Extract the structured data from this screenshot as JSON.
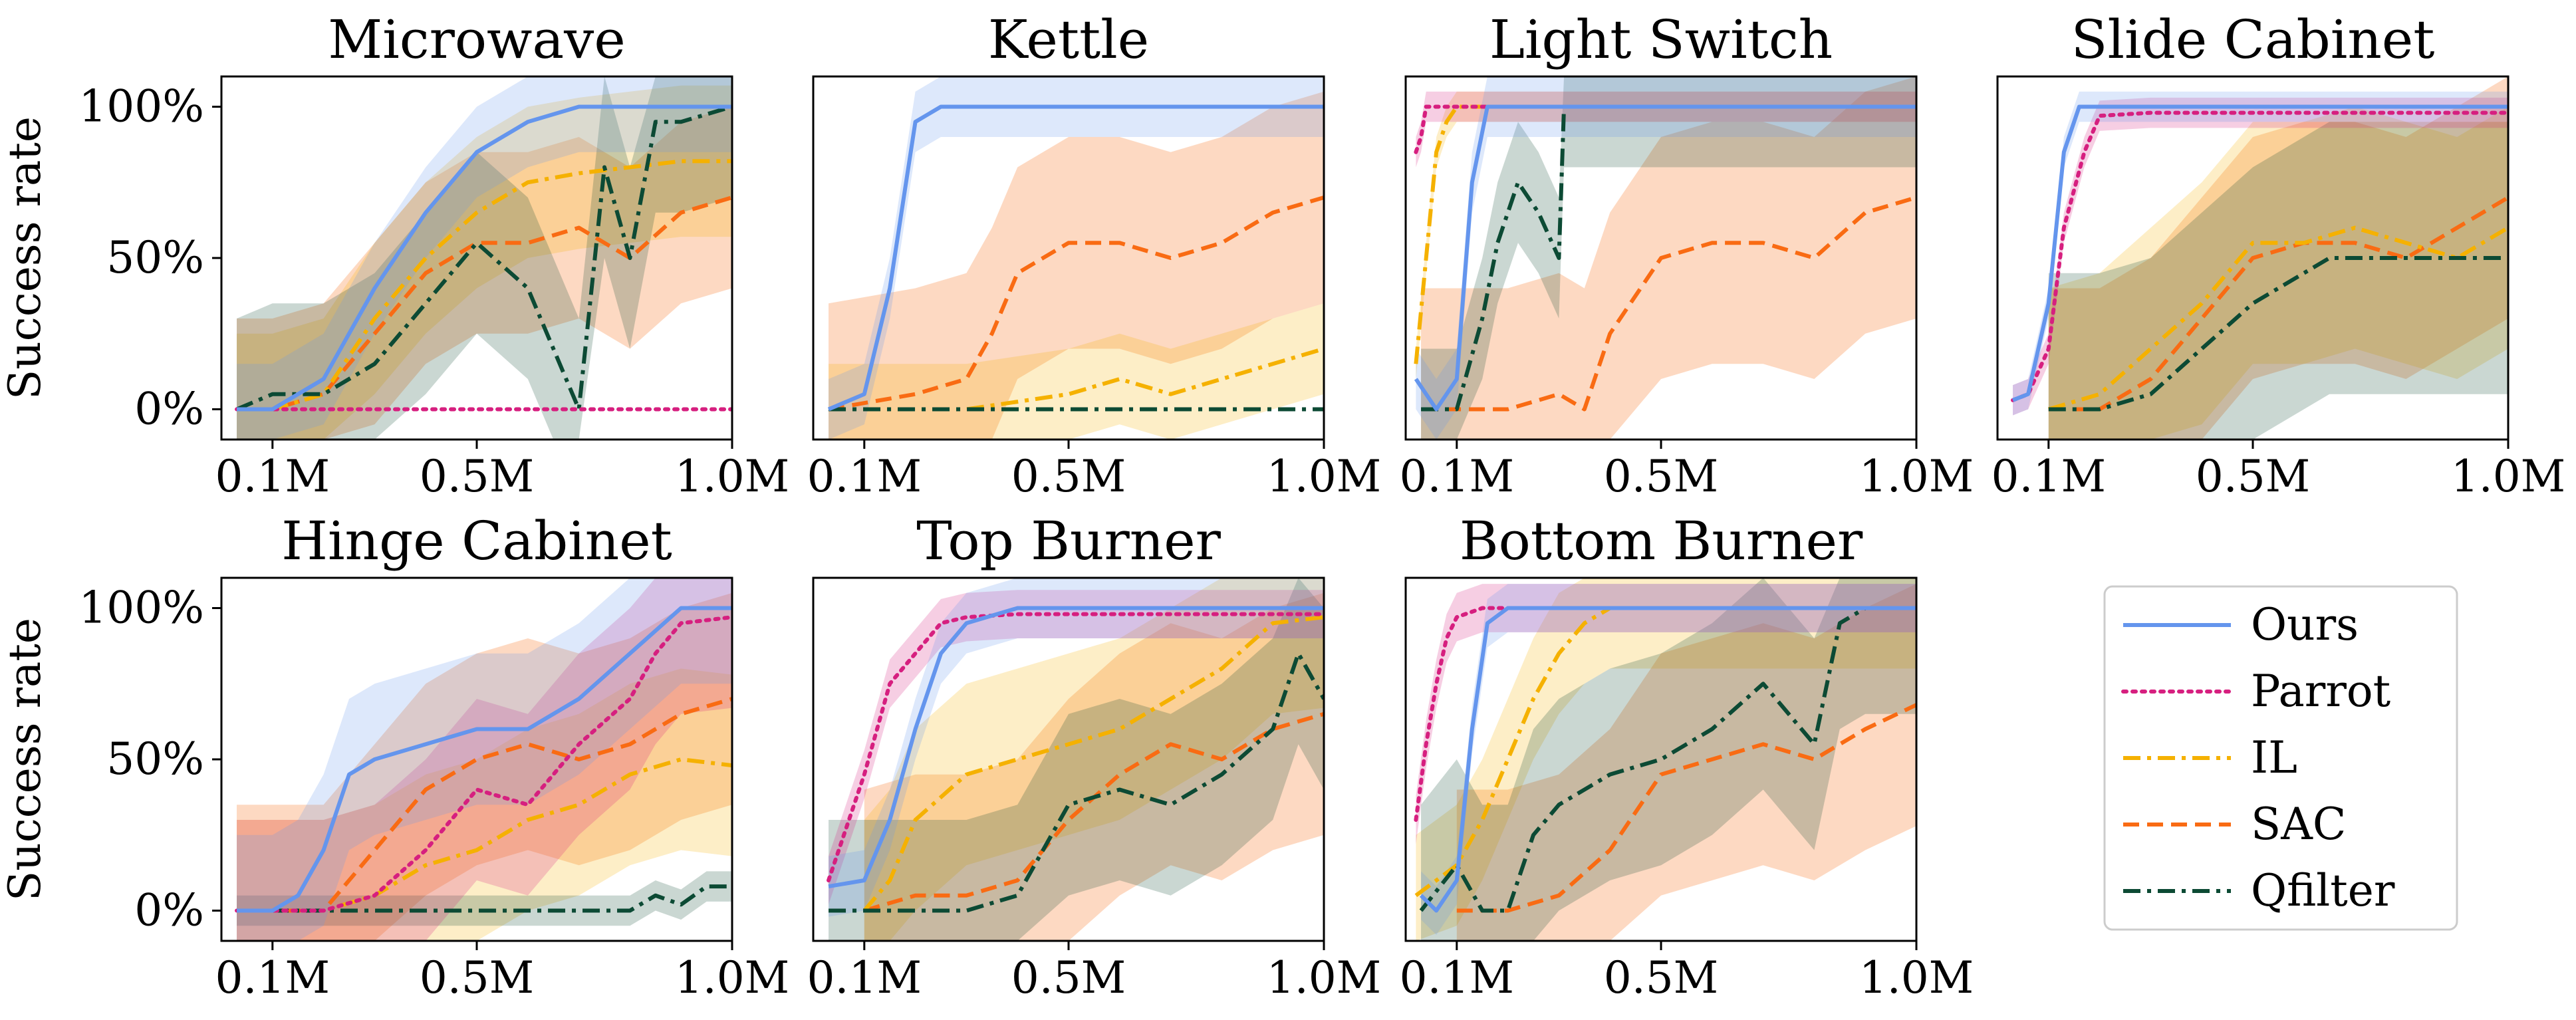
{
  "chart_data": [
    {
      "type": "line",
      "title": "Microwave",
      "ylabel": "Success rate",
      "xlabel": "",
      "xlim": [
        0,
        1.0
      ],
      "ylim": [
        -0.1,
        1.1
      ],
      "xticks": [
        "0.1M",
        "0.5M",
        "1.0M"
      ],
      "xtick_values": [
        0.1,
        0.5,
        1.0
      ],
      "yticks": [
        "0%",
        "50%",
        "100%"
      ],
      "ytick_values": [
        0,
        0.5,
        1.0
      ],
      "series": [
        {
          "name": "Ours",
          "x": [
            0.03,
            0.1,
            0.2,
            0.3,
            0.4,
            0.5,
            0.6,
            0.7,
            0.8,
            0.9,
            1.0
          ],
          "y": [
            0.0,
            0.0,
            0.1,
            0.4,
            0.65,
            0.85,
            0.95,
            1.0,
            1.0,
            1.0,
            1.0
          ],
          "band": 0.15
        },
        {
          "name": "Parrot",
          "x": [
            0.03,
            0.2,
            0.4,
            0.6,
            0.8,
            1.0
          ],
          "y": [
            0.0,
            0.0,
            0.0,
            0.0,
            0.0,
            0.0
          ],
          "band": 0.0
        },
        {
          "name": "IL",
          "x": [
            0.03,
            0.1,
            0.2,
            0.3,
            0.4,
            0.5,
            0.6,
            0.7,
            0.8,
            0.9,
            1.0
          ],
          "y": [
            0.0,
            0.0,
            0.05,
            0.3,
            0.5,
            0.65,
            0.75,
            0.78,
            0.8,
            0.82,
            0.82
          ],
          "band": 0.25
        },
        {
          "name": "SAC",
          "x": [
            0.03,
            0.1,
            0.2,
            0.3,
            0.4,
            0.5,
            0.6,
            0.7,
            0.8,
            0.9,
            1.0
          ],
          "y": [
            0.0,
            0.0,
            0.05,
            0.25,
            0.45,
            0.55,
            0.55,
            0.6,
            0.5,
            0.65,
            0.7
          ],
          "band": 0.3
        },
        {
          "name": "Qfilter",
          "x": [
            0.03,
            0.1,
            0.2,
            0.3,
            0.4,
            0.5,
            0.6,
            0.65,
            0.7,
            0.75,
            0.8,
            0.85,
            0.9,
            1.0
          ],
          "y": [
            0.0,
            0.05,
            0.05,
            0.15,
            0.35,
            0.55,
            0.4,
            0.2,
            0.0,
            0.8,
            0.5,
            0.95,
            0.95,
            1.0
          ],
          "band": 0.3
        }
      ]
    },
    {
      "type": "line",
      "title": "Kettle",
      "ylabel": "",
      "xlabel": "",
      "xlim": [
        0,
        1.0
      ],
      "ylim": [
        -0.1,
        1.1
      ],
      "xticks": [
        "0.1M",
        "0.5M",
        "1.0M"
      ],
      "xtick_values": [
        0.1,
        0.5,
        1.0
      ],
      "yticks": [],
      "ytick_values": [],
      "series": [
        {
          "name": "Ours",
          "x": [
            0.03,
            0.1,
            0.15,
            0.2,
            0.25,
            0.3,
            0.5,
            0.7,
            1.0
          ],
          "y": [
            0.0,
            0.05,
            0.4,
            0.95,
            1.0,
            1.0,
            1.0,
            1.0,
            1.0
          ],
          "band": 0.1
        },
        {
          "name": "IL",
          "x": [
            0.03,
            0.3,
            0.5,
            0.6,
            0.7,
            0.8,
            0.9,
            1.0
          ],
          "y": [
            0.0,
            0.0,
            0.05,
            0.1,
            0.05,
            0.1,
            0.15,
            0.2
          ],
          "band": 0.15
        },
        {
          "name": "SAC",
          "x": [
            0.03,
            0.2,
            0.3,
            0.35,
            0.4,
            0.5,
            0.6,
            0.7,
            0.8,
            0.9,
            1.0
          ],
          "y": [
            0.0,
            0.05,
            0.1,
            0.25,
            0.45,
            0.55,
            0.55,
            0.5,
            0.55,
            0.65,
            0.7
          ],
          "band": 0.35
        },
        {
          "name": "Qfilter",
          "x": [
            0.03,
            0.3,
            0.6,
            1.0
          ],
          "y": [
            0.0,
            0.0,
            0.0,
            0.0
          ],
          "band": 0.0
        }
      ]
    },
    {
      "type": "line",
      "title": "Light Switch",
      "ylabel": "",
      "xlabel": "",
      "xlim": [
        0,
        1.0
      ],
      "ylim": [
        -0.1,
        1.1
      ],
      "xticks": [
        "0.1M",
        "0.5M",
        "1.0M"
      ],
      "xtick_values": [
        0.1,
        0.5,
        1.0
      ],
      "yticks": [],
      "ytick_values": [],
      "series": [
        {
          "name": "Ours",
          "x": [
            0.02,
            0.06,
            0.1,
            0.13,
            0.16,
            0.2,
            0.3,
            0.5,
            1.0
          ],
          "y": [
            0.1,
            0.0,
            0.1,
            0.75,
            1.0,
            1.0,
            1.0,
            1.0,
            1.0
          ],
          "band": 0.1
        },
        {
          "name": "Parrot",
          "x": [
            0.02,
            0.03,
            0.04,
            0.06,
            0.1,
            0.2,
            0.5,
            1.0
          ],
          "y": [
            0.85,
            0.9,
            1.0,
            1.0,
            1.0,
            1.0,
            1.0,
            1.0
          ],
          "band": 0.05
        },
        {
          "name": "IL",
          "x": [
            0.02,
            0.04,
            0.06,
            0.08,
            0.1,
            0.2,
            0.5,
            1.0
          ],
          "y": [
            0.15,
            0.5,
            0.85,
            0.95,
            1.0,
            1.0,
            1.0,
            1.0
          ],
          "band": 0.05
        },
        {
          "name": "SAC",
          "x": [
            0.03,
            0.2,
            0.3,
            0.35,
            0.4,
            0.5,
            0.6,
            0.7,
            0.8,
            0.9,
            1.0
          ],
          "y": [
            0.0,
            0.0,
            0.05,
            0.0,
            0.25,
            0.5,
            0.55,
            0.55,
            0.5,
            0.65,
            0.7
          ],
          "band": 0.4
        },
        {
          "name": "Qfilter",
          "x": [
            0.03,
            0.1,
            0.15,
            0.18,
            0.22,
            0.26,
            0.3,
            0.31,
            0.4,
            0.6,
            1.0
          ],
          "y": [
            0.0,
            0.0,
            0.3,
            0.55,
            0.75,
            0.65,
            0.5,
            1.0,
            1.0,
            1.0,
            1.0
          ],
          "band": 0.2
        }
      ]
    },
    {
      "type": "line",
      "title": "Slide Cabinet",
      "ylabel": "",
      "xlabel": "",
      "xlim": [
        0,
        1.0
      ],
      "ylim": [
        -0.1,
        1.1
      ],
      "xticks": [
        "0.1M",
        "0.5M",
        "1.0M"
      ],
      "xtick_values": [
        0.1,
        0.5,
        1.0
      ],
      "yticks": [],
      "ytick_values": [],
      "series": [
        {
          "name": "Ours",
          "x": [
            0.03,
            0.06,
            0.1,
            0.13,
            0.16,
            0.2,
            0.3,
            0.5,
            1.0
          ],
          "y": [
            0.03,
            0.05,
            0.35,
            0.85,
            1.0,
            1.0,
            1.0,
            1.0,
            1.0
          ],
          "band": 0.05
        },
        {
          "name": "Parrot",
          "x": [
            0.03,
            0.06,
            0.1,
            0.13,
            0.17,
            0.2,
            0.3,
            0.5,
            1.0
          ],
          "y": [
            0.03,
            0.05,
            0.2,
            0.6,
            0.85,
            0.97,
            0.98,
            0.98,
            0.98
          ],
          "band": 0.05
        },
        {
          "name": "IL",
          "x": [
            0.1,
            0.2,
            0.3,
            0.4,
            0.5,
            0.6,
            0.7,
            0.8,
            0.9,
            1.0
          ],
          "y": [
            0.0,
            0.05,
            0.2,
            0.35,
            0.55,
            0.55,
            0.6,
            0.55,
            0.5,
            0.6
          ],
          "band": 0.4
        },
        {
          "name": "SAC",
          "x": [
            0.1,
            0.2,
            0.3,
            0.4,
            0.5,
            0.6,
            0.7,
            0.8,
            0.9,
            1.0
          ],
          "y": [
            0.0,
            0.0,
            0.1,
            0.3,
            0.5,
            0.55,
            0.55,
            0.5,
            0.6,
            0.7
          ],
          "band": 0.4
        },
        {
          "name": "Qfilter",
          "x": [
            0.1,
            0.2,
            0.3,
            0.4,
            0.5,
            0.6,
            0.65,
            0.7,
            0.8,
            1.0
          ],
          "y": [
            0.0,
            0.0,
            0.05,
            0.2,
            0.35,
            0.45,
            0.5,
            0.5,
            0.5,
            0.5
          ],
          "band": 0.45
        }
      ]
    },
    {
      "type": "line",
      "title": "Hinge Cabinet",
      "ylabel": "Success rate",
      "xlabel": "",
      "xlim": [
        0,
        1.0
      ],
      "ylim": [
        -0.1,
        1.1
      ],
      "xticks": [
        "0.1M",
        "0.5M",
        "1.0M"
      ],
      "xtick_values": [
        0.1,
        0.5,
        1.0
      ],
      "yticks": [
        "0%",
        "50%",
        "100%"
      ],
      "ytick_values": [
        0,
        0.5,
        1.0
      ],
      "series": [
        {
          "name": "Ours",
          "x": [
            0.03,
            0.1,
            0.15,
            0.2,
            0.25,
            0.3,
            0.4,
            0.5,
            0.6,
            0.7,
            0.8,
            0.9,
            1.0
          ],
          "y": [
            0.0,
            0.0,
            0.05,
            0.2,
            0.45,
            0.5,
            0.55,
            0.6,
            0.6,
            0.7,
            0.85,
            1.0,
            1.0
          ],
          "band": 0.25
        },
        {
          "name": "Parrot",
          "x": [
            0.03,
            0.2,
            0.3,
            0.4,
            0.5,
            0.6,
            0.7,
            0.8,
            0.85,
            0.9,
            1.0
          ],
          "y": [
            0.0,
            0.0,
            0.05,
            0.2,
            0.4,
            0.35,
            0.55,
            0.7,
            0.85,
            0.95,
            0.97
          ],
          "band": 0.3
        },
        {
          "name": "IL",
          "x": [
            0.03,
            0.2,
            0.3,
            0.4,
            0.5,
            0.6,
            0.7,
            0.8,
            0.9,
            1.0
          ],
          "y": [
            0.0,
            0.0,
            0.05,
            0.15,
            0.2,
            0.3,
            0.35,
            0.45,
            0.5,
            0.48
          ],
          "band": 0.3
        },
        {
          "name": "SAC",
          "x": [
            0.03,
            0.2,
            0.3,
            0.4,
            0.5,
            0.6,
            0.7,
            0.8,
            0.9,
            1.0
          ],
          "y": [
            0.0,
            0.0,
            0.2,
            0.4,
            0.5,
            0.55,
            0.5,
            0.55,
            0.65,
            0.7
          ],
          "band": 0.35
        },
        {
          "name": "Qfilter",
          "x": [
            0.03,
            0.4,
            0.6,
            0.8,
            0.85,
            0.9,
            0.95,
            1.0
          ],
          "y": [
            0.0,
            0.0,
            0.0,
            0.0,
            0.05,
            0.02,
            0.08,
            0.08
          ],
          "band": 0.05
        }
      ]
    },
    {
      "type": "line",
      "title": "Top Burner",
      "ylabel": "",
      "xlabel": "",
      "xlim": [
        0,
        1.0
      ],
      "ylim": [
        -0.1,
        1.1
      ],
      "xticks": [
        "0.1M",
        "0.5M",
        "1.0M"
      ],
      "xtick_values": [
        0.1,
        0.5,
        1.0
      ],
      "yticks": [],
      "ytick_values": [],
      "series": [
        {
          "name": "Ours",
          "x": [
            0.03,
            0.1,
            0.15,
            0.2,
            0.25,
            0.3,
            0.4,
            0.5,
            0.7,
            1.0
          ],
          "y": [
            0.08,
            0.1,
            0.3,
            0.6,
            0.85,
            0.95,
            1.0,
            1.0,
            1.0,
            1.0
          ],
          "band": 0.1
        },
        {
          "name": "Parrot",
          "x": [
            0.03,
            0.06,
            0.1,
            0.15,
            0.2,
            0.25,
            0.3,
            0.4,
            0.6,
            1.0
          ],
          "y": [
            0.1,
            0.25,
            0.45,
            0.75,
            0.85,
            0.95,
            0.97,
            0.98,
            0.98,
            0.98
          ],
          "band": 0.08
        },
        {
          "name": "IL",
          "x": [
            0.1,
            0.15,
            0.2,
            0.3,
            0.4,
            0.5,
            0.6,
            0.7,
            0.8,
            0.9,
            1.0
          ],
          "y": [
            0.0,
            0.1,
            0.3,
            0.45,
            0.5,
            0.55,
            0.6,
            0.7,
            0.8,
            0.95,
            0.97
          ],
          "band": 0.3
        },
        {
          "name": "SAC",
          "x": [
            0.1,
            0.2,
            0.3,
            0.4,
            0.5,
            0.6,
            0.7,
            0.8,
            0.9,
            1.0
          ],
          "y": [
            0.0,
            0.05,
            0.05,
            0.1,
            0.3,
            0.45,
            0.55,
            0.5,
            0.6,
            0.65
          ],
          "band": 0.4
        },
        {
          "name": "Qfilter",
          "x": [
            0.03,
            0.2,
            0.3,
            0.4,
            0.5,
            0.6,
            0.7,
            0.8,
            0.9,
            0.95,
            1.0
          ],
          "y": [
            0.0,
            0.0,
            0.0,
            0.05,
            0.35,
            0.4,
            0.35,
            0.45,
            0.6,
            0.85,
            0.7
          ],
          "band": 0.3
        }
      ]
    },
    {
      "type": "line",
      "title": "Bottom Burner",
      "ylabel": "",
      "xlabel": "",
      "xlim": [
        0,
        1.0
      ],
      "ylim": [
        -0.1,
        1.1
      ],
      "xticks": [
        "0.1M",
        "0.5M",
        "1.0M"
      ],
      "xtick_values": [
        0.1,
        0.5,
        1.0
      ],
      "yticks": [],
      "ytick_values": [],
      "series": [
        {
          "name": "Ours",
          "x": [
            0.03,
            0.06,
            0.1,
            0.13,
            0.16,
            0.2,
            0.3,
            0.5,
            1.0
          ],
          "y": [
            0.05,
            0.0,
            0.1,
            0.6,
            0.95,
            1.0,
            1.0,
            1.0,
            1.0
          ],
          "band": 0.08
        },
        {
          "name": "Parrot",
          "x": [
            0.02,
            0.04,
            0.06,
            0.08,
            0.1,
            0.15,
            0.2,
            0.4,
            1.0
          ],
          "y": [
            0.3,
            0.55,
            0.75,
            0.9,
            0.97,
            1.0,
            1.0,
            1.0,
            1.0
          ],
          "band": 0.08
        },
        {
          "name": "IL",
          "x": [
            0.02,
            0.1,
            0.15,
            0.2,
            0.25,
            0.3,
            0.35,
            0.4,
            0.6,
            1.0
          ],
          "y": [
            0.05,
            0.15,
            0.3,
            0.5,
            0.7,
            0.85,
            0.95,
            1.0,
            1.0,
            1.0
          ],
          "band": 0.2
        },
        {
          "name": "SAC",
          "x": [
            0.1,
            0.2,
            0.3,
            0.4,
            0.5,
            0.6,
            0.7,
            0.8,
            0.9,
            1.0
          ],
          "y": [
            0.0,
            0.0,
            0.05,
            0.2,
            0.45,
            0.5,
            0.55,
            0.5,
            0.6,
            0.68
          ],
          "band": 0.4
        },
        {
          "name": "Qfilter",
          "x": [
            0.03,
            0.1,
            0.15,
            0.2,
            0.25,
            0.3,
            0.4,
            0.5,
            0.6,
            0.7,
            0.8,
            0.85,
            0.9,
            1.0
          ],
          "y": [
            0.0,
            0.15,
            0.0,
            0.0,
            0.25,
            0.35,
            0.45,
            0.5,
            0.6,
            0.75,
            0.55,
            0.95,
            1.0,
            1.0
          ],
          "band": 0.35
        }
      ]
    }
  ],
  "legend": {
    "placement": "bottom-right",
    "entries": [
      {
        "name": "Ours",
        "color": "#6495ED",
        "dash": "solid"
      },
      {
        "name": "Parrot",
        "color": "#D61F7F",
        "dash": "dotted"
      },
      {
        "name": "IL",
        "color": "#F5B100",
        "dash": "dashdot"
      },
      {
        "name": "SAC",
        "color": "#F96B13",
        "dash": "dashed"
      },
      {
        "name": "Qfilter",
        "color": "#0C4A34",
        "dash": "dashdot"
      }
    ]
  },
  "colors": {
    "Ours": "#6495ED",
    "Parrot": "#D61F7F",
    "IL": "#F5B100",
    "SAC": "#F96B13",
    "Qfilter": "#0C4A34"
  }
}
